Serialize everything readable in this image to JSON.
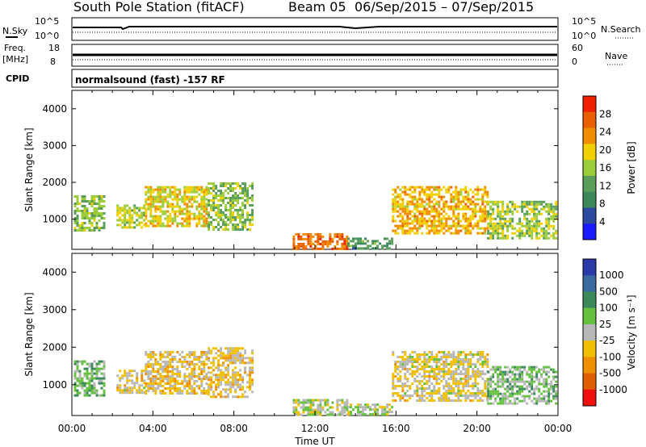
{
  "header": {
    "title": "South Pole Station (fitACF)",
    "beam": "Beam 05",
    "date_range": "06/Sep/2015 – 07/Sep/2015"
  },
  "summary_panels": {
    "nsky_label": "N.Sky",
    "nsearch_label": "N.Search",
    "freq_label_line1": "Freq.",
    "freq_label_line2": "[MHz]",
    "nave_label": "Nave",
    "cpid_label": "CPID",
    "count_ticks": [
      "10^5",
      "10^0"
    ],
    "freq_ticks": [
      "18",
      "8"
    ],
    "nave_ticks": [
      "60",
      "0"
    ],
    "cpid_value": "normalsound (fast) -157 RF"
  },
  "colors": {
    "power_scale": [
      "#1a1aff",
      "#2c4aa0",
      "#3c8a5c",
      "#5a9e5a",
      "#9ccc3a",
      "#f0d000",
      "#f08c00",
      "#e86000",
      "#f02000"
    ],
    "velocity_scale": [
      "#2a3aa8",
      "#3a6aa0",
      "#3c8a5c",
      "#66c040",
      "#b8b8b8",
      "#f0c000",
      "#f09000",
      "#e06000",
      "#f01010"
    ]
  },
  "chart_data": [
    {
      "type": "heatmap",
      "title": "",
      "quantity": "Power",
      "xlabel": "Time UT",
      "ylabel": "Slant Range [km]",
      "x_ticks": [
        "00:00",
        "04:00",
        "08:00",
        "12:00",
        "16:00",
        "20:00",
        "00:00"
      ],
      "xlim_hours": [
        0,
        24
      ],
      "y_ticks": [
        1000,
        2000,
        3000,
        4000
      ],
      "ylim": [
        180,
        4500
      ],
      "colorbar": {
        "label": "Power [dB]",
        "ticks": [
          "4",
          "8",
          "12",
          "16",
          "20",
          "24",
          "28"
        ],
        "range": [
          0,
          30
        ]
      },
      "regions": [
        {
          "t": [
            0.1,
            1.6
          ],
          "r": [
            700,
            1650
          ],
          "value": 14
        },
        {
          "t": [
            2.2,
            3.6
          ],
          "r": [
            800,
            1400
          ],
          "value": 16
        },
        {
          "t": [
            3.6,
            6.7
          ],
          "r": [
            800,
            1900
          ],
          "value": 18
        },
        {
          "t": [
            6.7,
            8.9
          ],
          "r": [
            700,
            2000
          ],
          "value": 14
        },
        {
          "t": [
            10.9,
            13.6
          ],
          "r": [
            200,
            620
          ],
          "value": 24
        },
        {
          "t": [
            13.6,
            15.8
          ],
          "r": [
            200,
            500
          ],
          "value": 10
        },
        {
          "t": [
            15.8,
            20.5
          ],
          "r": [
            600,
            1900
          ],
          "value": 20
        },
        {
          "t": [
            20.5,
            23.9
          ],
          "r": [
            500,
            1500
          ],
          "value": 15
        }
      ]
    },
    {
      "type": "heatmap",
      "title": "",
      "quantity": "Velocity",
      "xlabel": "Time UT",
      "ylabel": "Slant Range [km]",
      "x_ticks": [
        "00:00",
        "04:00",
        "08:00",
        "12:00",
        "16:00",
        "20:00",
        "00:00"
      ],
      "xlim_hours": [
        0,
        24
      ],
      "y_ticks": [
        1000,
        2000,
        3000,
        4000
      ],
      "ylim": [
        180,
        4500
      ],
      "colorbar": {
        "label": "Velocity [m s⁻¹]",
        "ticks": [
          "1000",
          "500",
          "100",
          "25",
          "-25",
          "-100",
          "-500",
          "-1000"
        ],
        "range": [
          -1200,
          1200
        ]
      },
      "regions": [
        {
          "t": [
            0.1,
            1.6
          ],
          "r": [
            700,
            1650
          ],
          "value": 300
        },
        {
          "t": [
            2.2,
            3.6
          ],
          "r": [
            800,
            1400
          ],
          "value": -150
        },
        {
          "t": [
            3.6,
            6.7
          ],
          "r": [
            800,
            1900
          ],
          "value": -200
        },
        {
          "t": [
            6.7,
            8.9
          ],
          "r": [
            700,
            2000
          ],
          "value": -200
        },
        {
          "t": [
            10.9,
            13.6
          ],
          "r": [
            200,
            620
          ],
          "value": 60
        },
        {
          "t": [
            13.6,
            15.8
          ],
          "r": [
            200,
            500
          ],
          "value": 80
        },
        {
          "t": [
            15.8,
            20.5
          ],
          "r": [
            600,
            1900
          ],
          "value": -120
        },
        {
          "t": [
            20.5,
            23.9
          ],
          "r": [
            500,
            1500
          ],
          "value": 200
        }
      ]
    }
  ]
}
